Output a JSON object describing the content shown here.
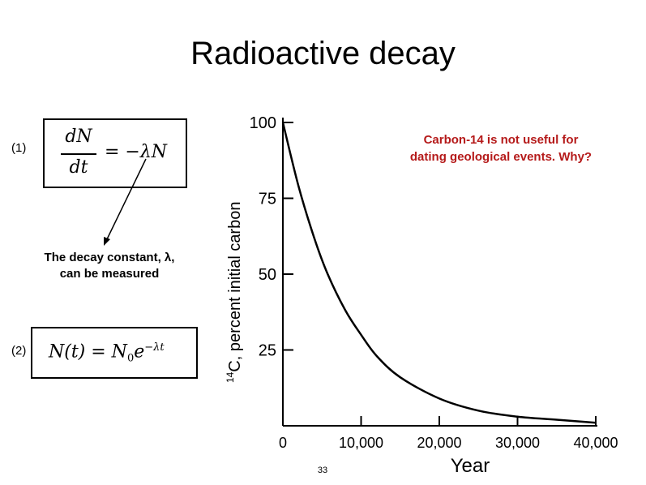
{
  "slide": {
    "title": "Radioactive decay",
    "page_number": "33"
  },
  "equations": {
    "eq1_label": "(1)",
    "eq1": {
      "numerator": "dN",
      "denominator": "dt",
      "rhs": "= −λN"
    },
    "eq2_label": "(2)",
    "eq2": {
      "lhs": "N(t) = N",
      "sub": "0",
      "base": "e",
      "exponent": "−λt"
    }
  },
  "annotation": {
    "line1": "The decay constant, λ,",
    "line2": "can be measured"
  },
  "question": {
    "line1": "Carbon-14 is not useful for",
    "line2": "dating geological events. Why?",
    "color": "#b51a1a"
  },
  "chart_data": {
    "type": "line",
    "xlabel": "Year",
    "ylabel_sup": "14",
    "ylabel": "C, percent initial carbon",
    "xlim": [
      0,
      40000
    ],
    "ylim": [
      0,
      100
    ],
    "xticks": [
      0,
      10000,
      20000,
      30000,
      40000
    ],
    "xtick_labels": [
      "0",
      "10,000",
      "20,000",
      "30,000",
      "40,000"
    ],
    "yticks": [
      25,
      50,
      75,
      100
    ],
    "ytick_labels": [
      "25",
      "50",
      "75",
      "100"
    ],
    "grid": false,
    "series": [
      {
        "x": [
          0,
          2000,
          4000,
          5730,
          8000,
          10000,
          12000,
          15000,
          20000,
          25000,
          30000,
          35000,
          40000
        ],
        "y": [
          100,
          79,
          62,
          50,
          38,
          30,
          23,
          16,
          9,
          5,
          3,
          2,
          1
        ]
      }
    ]
  }
}
